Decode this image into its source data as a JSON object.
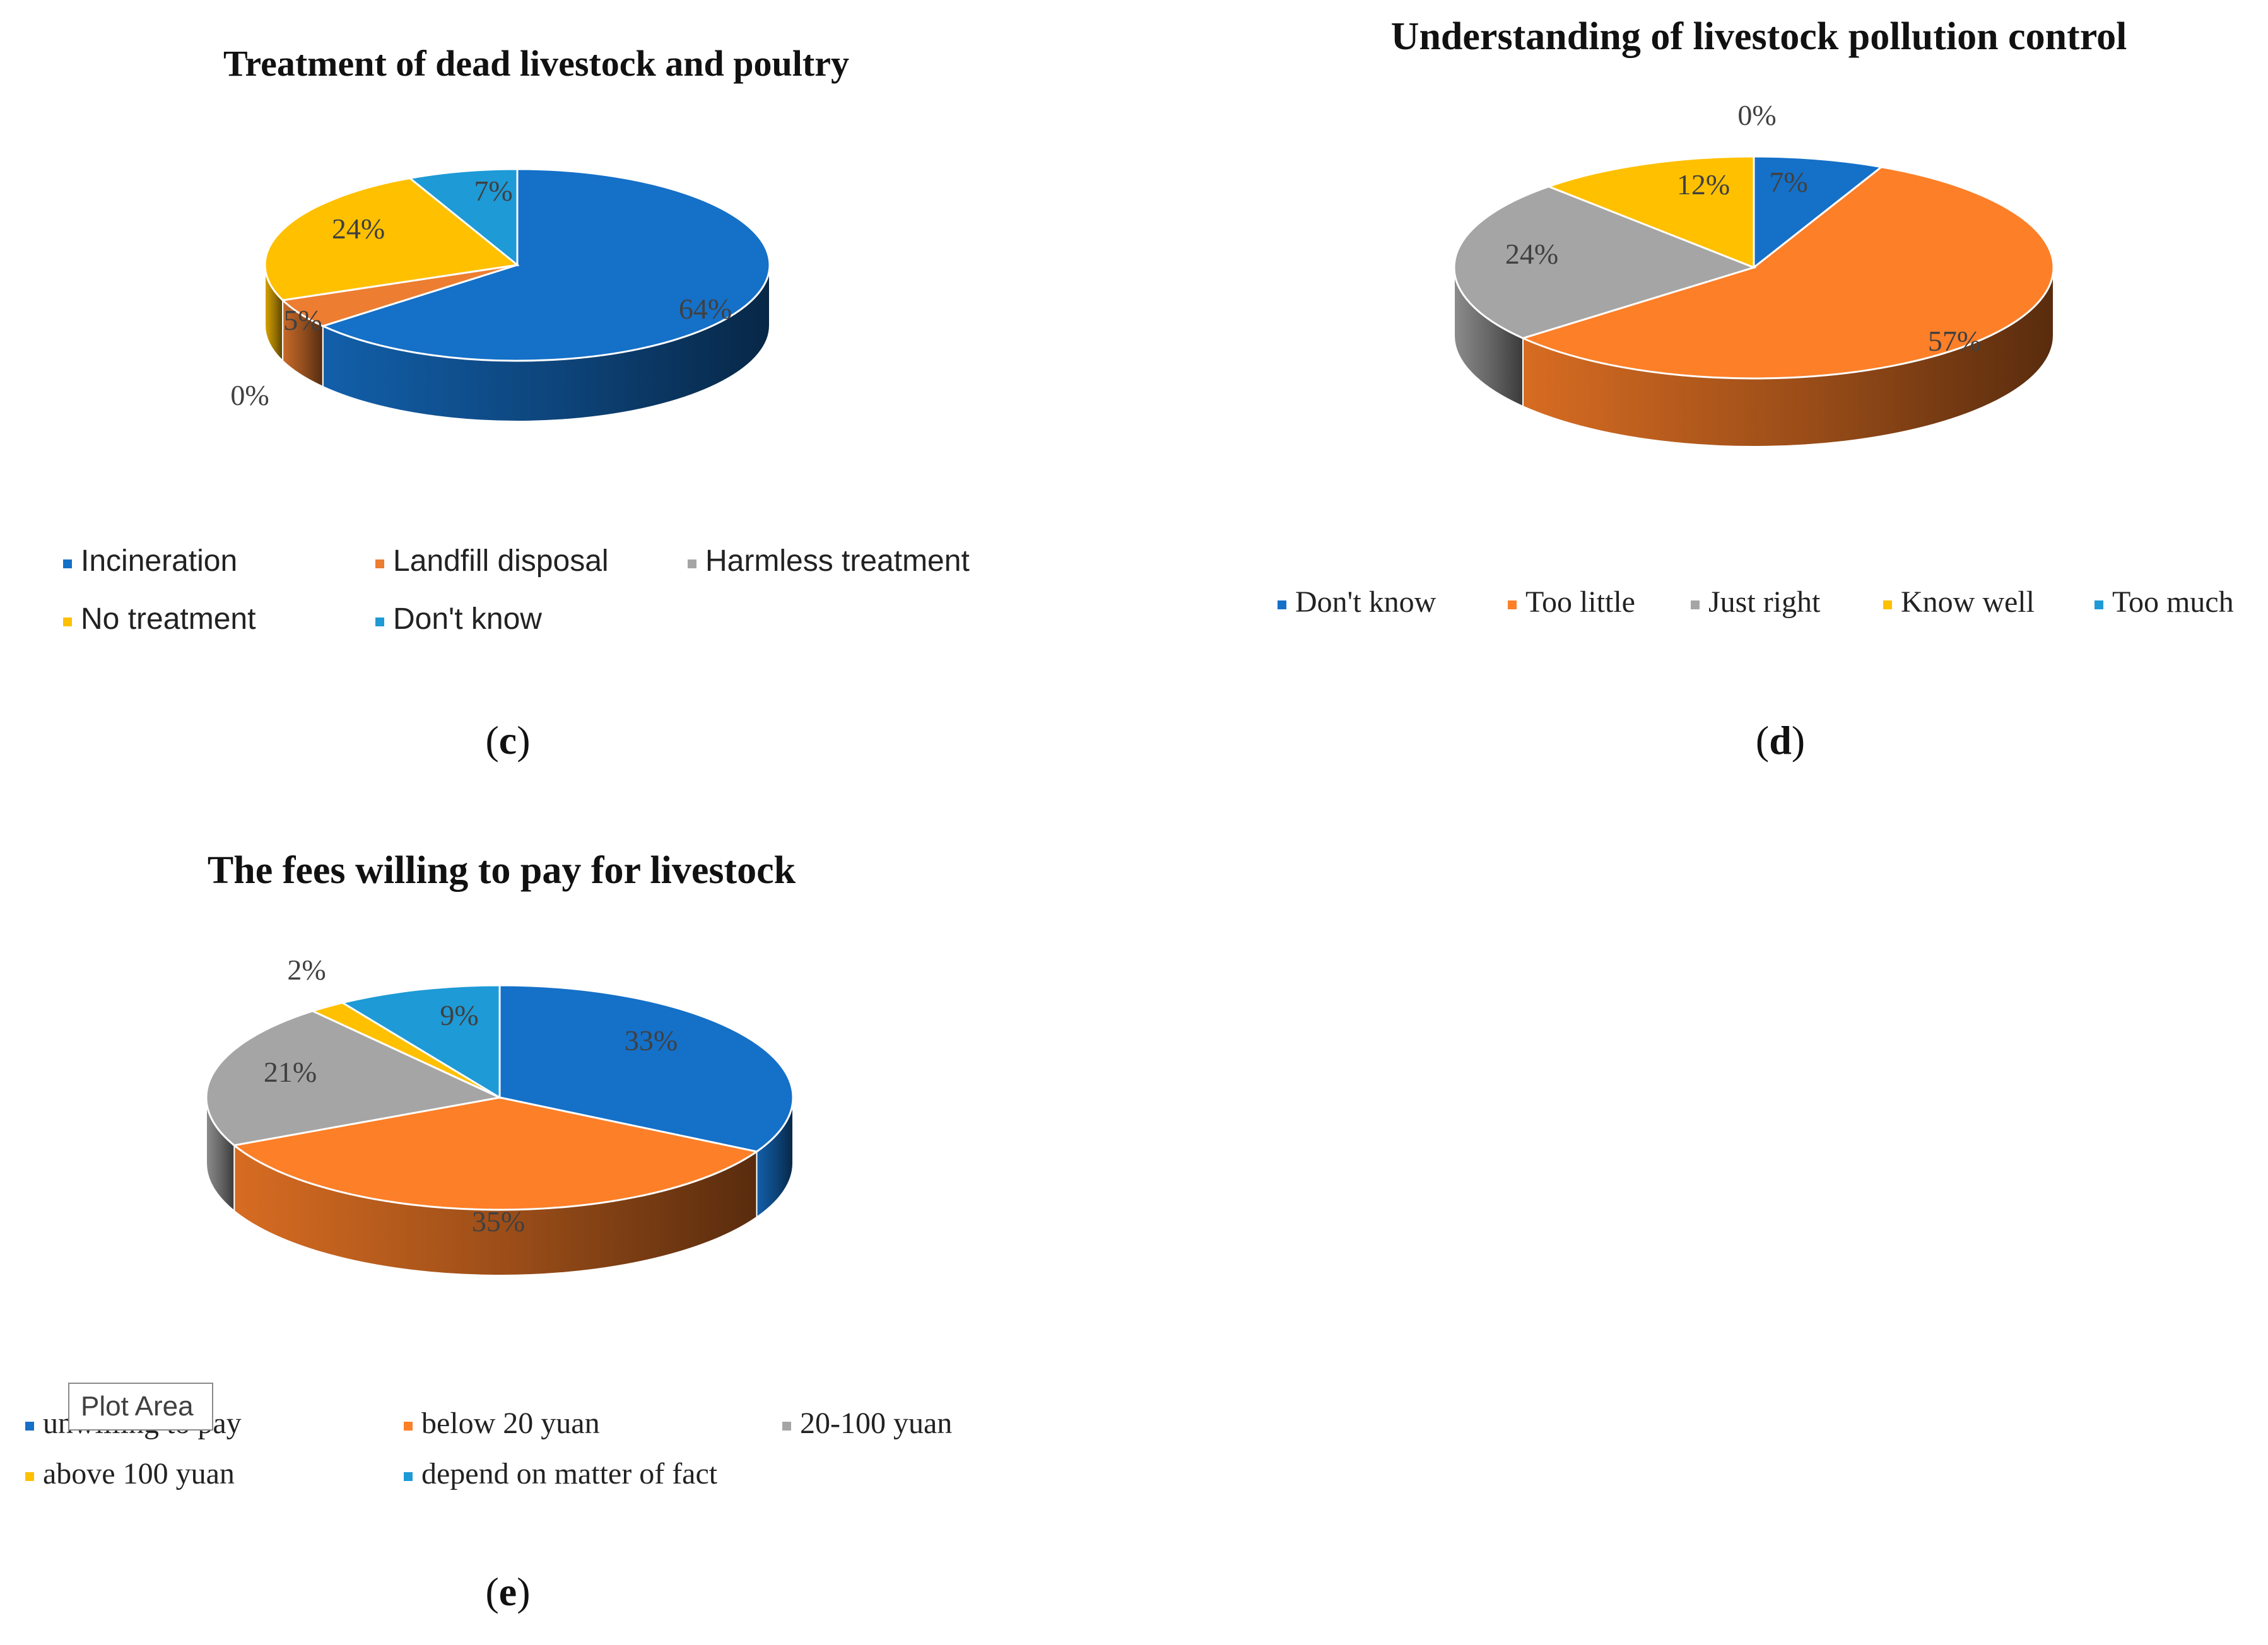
{
  "chart_data": [
    {
      "type": "pie",
      "panel_label": "c",
      "title": "Treatment of dead livestock and poultry",
      "legend_position": "bottom",
      "slices": [
        {
          "label": "Incineration",
          "value": 64,
          "value_label": "64%",
          "color": "#1570c8"
        },
        {
          "label": "Landfill disposal",
          "value": 5,
          "value_label": "5%",
          "color": "#ed7d31"
        },
        {
          "label": "Harmless treatment",
          "value": 0,
          "value_label": "0%",
          "color": "#a5a5a5"
        },
        {
          "label": "No treatment",
          "value": 24,
          "value_label": "24%",
          "color": "#ffc000"
        },
        {
          "label": "Don't know",
          "value": 7,
          "value_label": "7%",
          "color": "#1e9ad6"
        }
      ]
    },
    {
      "type": "pie",
      "panel_label": "d",
      "title": "Understanding of livestock pollution control",
      "legend_position": "bottom",
      "slices": [
        {
          "label": "Don't know",
          "value": 7,
          "value_label": "7%",
          "color": "#1570c8"
        },
        {
          "label": "Too little",
          "value": 57,
          "value_label": "57%",
          "color": "#fd7f28"
        },
        {
          "label": "Just right",
          "value": 24,
          "value_label": "24%",
          "color": "#a5a5a5"
        },
        {
          "label": "Know well",
          "value": 12,
          "value_label": "12%",
          "color": "#ffc000"
        },
        {
          "label": "Too much",
          "value": 0,
          "value_label": "0%",
          "color": "#1e9ad6"
        }
      ]
    },
    {
      "type": "pie",
      "panel_label": "e",
      "title": "The fees willing to pay for livestock",
      "legend_position": "bottom",
      "slices": [
        {
          "label": "unwilling to pay",
          "value": 33,
          "value_label": "33%",
          "color": "#1570c8"
        },
        {
          "label": "below 20 yuan",
          "value": 35,
          "value_label": "35%",
          "color": "#fd7f28"
        },
        {
          "label": "20-100 yuan",
          "value": 21,
          "value_label": "21%",
          "color": "#a5a5a5"
        },
        {
          "label": "above 100 yuan",
          "value": 2,
          "value_label": "2%",
          "color": "#ffc000"
        },
        {
          "label": "depend on matter of fact",
          "value": 9,
          "value_label": "9%",
          "color": "#1e9ad6"
        }
      ]
    }
  ],
  "tooltip": {
    "text": "Plot Area"
  }
}
